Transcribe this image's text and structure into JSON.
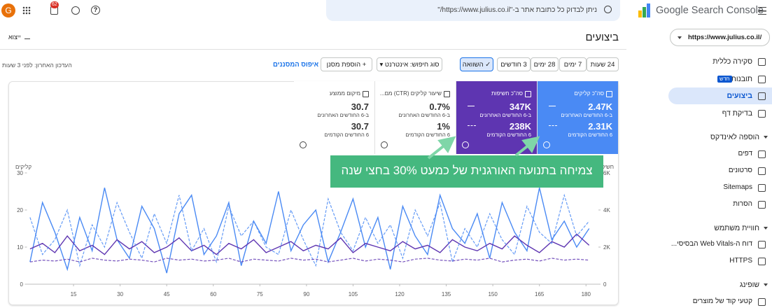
{
  "top_bar": {
    "avatar": "G",
    "notifications": "62",
    "search_placeholder": "ניתן לבדוק כל כתובת אתר ב-\"https://www.julius.co.il/\"",
    "product": "Google Search Console"
  },
  "sidebar": {
    "property": "https://www.julius.co.il/",
    "items": [
      {
        "label": "סקירה כללית"
      },
      {
        "label": "תובנות",
        "badge": "חדש"
      },
      {
        "label": "ביצועים"
      },
      {
        "label": "בדיקת דף"
      }
    ],
    "sections": [
      {
        "title": "הוספה לאינדקס",
        "items": [
          "דפים",
          "סרטונים",
          "Sitemaps",
          "הסרות"
        ]
      },
      {
        "title": "חוויית משתמש",
        "items": [
          "דוח ה-Web Vitals הבסיסי...",
          "HTTPS"
        ]
      },
      {
        "title": "שופינג",
        "items": [
          "קטעי קוד של מוצרים"
        ]
      }
    ]
  },
  "header": {
    "title": "ביצועים",
    "export": "ייצוא"
  },
  "toolbar": {
    "ranges": [
      "24 שעות",
      "7 ימים",
      "28 ימים",
      "3 חודשים"
    ],
    "compare": "השוואה",
    "search_type": "סוג חיפוש: אינטרנט",
    "add_filter": "הוספת מסנן",
    "reset": "איפוס המסננים",
    "last_updated": "העדכון האחרון: לפני 3 שעות"
  },
  "metrics": [
    {
      "label": "סה\"כ קליקים",
      "current": "2.47K",
      "current_label": "ב-6 החודשים האחרונים",
      "previous": "2.31K",
      "previous_label": "6 החודשים הקודמים"
    },
    {
      "label": "סה\"כ חשיפות",
      "current": "347K",
      "current_label": "ב-6 החודשים האחרונים",
      "previous": "238K",
      "previous_label": "6 החודשים הקודמים"
    },
    {
      "label": "שיעור קליקים (CTR) מם...",
      "current": "0.7%",
      "current_label": "ב-6 החודשים האחרונים",
      "previous": "1%",
      "previous_label": "6 החודשים הקודמים"
    },
    {
      "label": "מיקום ממוצע",
      "current": "30.7",
      "current_label": "ב-6 החודשים האחרונים",
      "previous": "30.7",
      "previous_label": "6 החודשים הקודמים"
    }
  ],
  "annotation": "צמיחה בתנועה האורגנית של כמעט 30% בחצי שנה",
  "chart_data": {
    "type": "line",
    "y_label": "קליקים",
    "y2_label": "חשיפות",
    "x": [
      1,
      5,
      9,
      13,
      17,
      21,
      25,
      29,
      33,
      37,
      41,
      45,
      49,
      53,
      57,
      61,
      65,
      69,
      73,
      77,
      81,
      85,
      89,
      93,
      97,
      101,
      105,
      109,
      113,
      117,
      121,
      125,
      129,
      133,
      137,
      141,
      145,
      149,
      153,
      157,
      161,
      165,
      169,
      173,
      177,
      181
    ],
    "xlim": [
      0,
      184
    ],
    "xticks": [
      15,
      30,
      45,
      60,
      75,
      90,
      105,
      120,
      135,
      150,
      165,
      180
    ],
    "ylim": [
      0,
      30
    ],
    "yticks": [
      0,
      10,
      20,
      30
    ],
    "y2lim": [
      0,
      6000
    ],
    "y2ticks": [
      0,
      {
        "value": 2000,
        "label": "2K"
      },
      {
        "value": 4000,
        "label": "4K"
      },
      {
        "value": 6000,
        "label": "6K"
      }
    ],
    "series": [
      {
        "color": "#4a8af4",
        "style": "solid",
        "values": [
          6,
          22,
          14,
          4,
          18,
          9,
          26,
          12,
          7,
          21,
          15,
          3,
          19,
          24,
          8,
          13,
          22,
          5,
          17,
          11,
          25,
          9,
          16,
          20,
          6,
          14,
          23,
          10,
          18,
          4,
          21,
          13,
          8,
          24,
          15,
          11,
          19,
          7,
          22,
          14,
          9,
          26,
          12,
          17,
          10,
          15
        ]
      },
      {
        "color": "#5e35b1",
        "style": "solid",
        "axis": "y2",
        "values": [
          1900,
          2200,
          1700,
          2600,
          1800,
          2100,
          1600,
          2400,
          1900,
          2300,
          1700,
          2000,
          2500,
          1800,
          2100,
          1600,
          2200,
          1900,
          2400,
          1700,
          2000,
          2300,
          1800,
          2100,
          1900,
          2500,
          1700,
          2200,
          2000,
          1800,
          2300,
          1900,
          2100,
          1700,
          2400,
          2000,
          1800,
          2200,
          1900,
          2600,
          2100,
          1700,
          2300,
          2000,
          2700,
          2100
        ]
      },
      {
        "color": "#4a8af4",
        "style": "dashed",
        "values": [
          18,
          8,
          12,
          20,
          5,
          16,
          10,
          22,
          14,
          7,
          19,
          11,
          24,
          9,
          15,
          6,
          21,
          13,
          17,
          10,
          8,
          20,
          12,
          5,
          23,
          14,
          9,
          18,
          11,
          16,
          7,
          20,
          13,
          22,
          6,
          15,
          10,
          19,
          12,
          8,
          21,
          14,
          11,
          24,
          13,
          17
        ]
      },
      {
        "color": "#5e35b1",
        "style": "dashed",
        "axis": "y2",
        "values": [
          1200,
          1300,
          1250,
          1350,
          1200,
          1400,
          1300,
          1250,
          1350,
          1300,
          1200,
          1400,
          1300,
          1350,
          1250,
          1300,
          1400,
          1200,
          1350,
          1300,
          1250,
          1400,
          1300,
          1350,
          1200,
          1300,
          1400,
          1250,
          1350,
          1300,
          1200,
          1350,
          1400,
          1300,
          1250,
          1350,
          1300,
          1400,
          1200,
          1300,
          1350,
          1250,
          1400,
          1300,
          1350,
          1300
        ]
      }
    ]
  }
}
